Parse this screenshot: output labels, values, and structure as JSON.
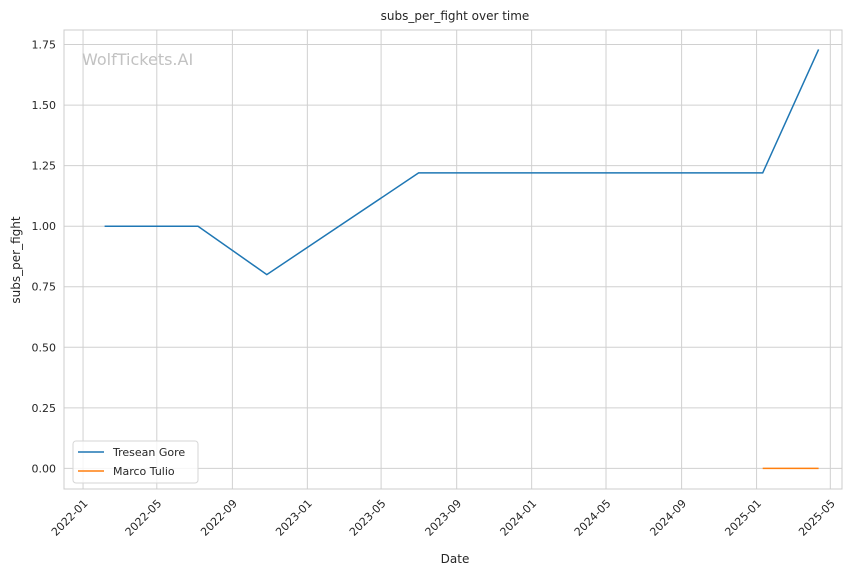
{
  "chart_data": {
    "type": "line",
    "title": "subs_per_fight over time",
    "xlabel": "Date",
    "ylabel": "subs_per_fight",
    "watermark": "WolfTickets.AI",
    "xlim": [
      "2021-12-01",
      "2025-05-20"
    ],
    "ylim": [
      -0.085,
      1.81
    ],
    "grid": true,
    "legend_position": "lower-left",
    "x_ticks": [
      "2022-01",
      "2022-05",
      "2022-09",
      "2023-01",
      "2023-05",
      "2023-09",
      "2024-01",
      "2024-05",
      "2024-09",
      "2025-01",
      "2025-05"
    ],
    "y_ticks": [
      "0.00",
      "0.25",
      "0.50",
      "0.75",
      "1.00",
      "1.25",
      "1.50",
      "1.75"
    ],
    "series": [
      {
        "name": "Tresean Gore",
        "color": "#1f77b4",
        "x": [
          "2022-02-05",
          "2022-07-07",
          "2022-10-27",
          "2023-07-01",
          "2025-01-11",
          "2025-04-12"
        ],
        "y": [
          1.0,
          1.0,
          0.8,
          1.22,
          1.22,
          1.73
        ]
      },
      {
        "name": "Marco Tulio",
        "color": "#ff7f0e",
        "x": [
          "2025-01-11",
          "2025-04-12"
        ],
        "y": [
          0.0,
          0.0
        ]
      }
    ]
  }
}
